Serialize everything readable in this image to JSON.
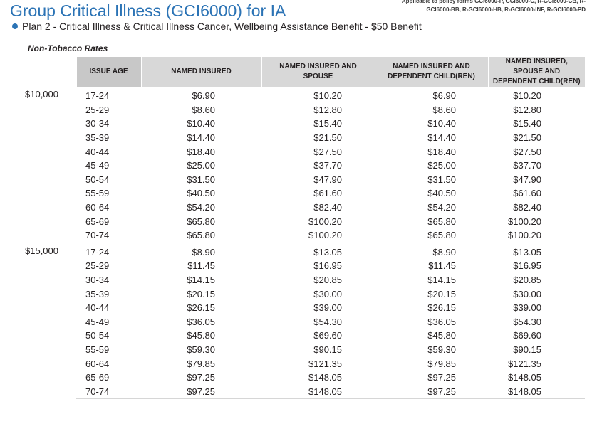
{
  "header": {
    "title": "Group Critical Illness (GCI6000) for IA",
    "forms_note": "Applicable to policy forms GCI6000-P, GCI6000-C, R-GCI6000-CB, R-GCI6000-BB, R-GCI6000-HB, R-GCI6000-INF, R-GCI6000-PD",
    "plan_line": "Plan 2 - Critical Illness & Critical Illness Cancer, Wellbeing Assistance Benefit - $50 Benefit",
    "bullet_color": "#2b73b5"
  },
  "rates_label": "Non-Tobacco Rates",
  "table": {
    "columns": [
      "",
      "ISSUE AGE",
      "NAMED INSURED",
      "NAMED INSURED AND SPOUSE",
      "NAMED INSURED AND DEPENDENT CHILD(REN)",
      "NAMED INSURED, SPOUSE AND DEPENDENT CHILD(REN)"
    ],
    "groups": [
      {
        "amount": "$10,000",
        "rows": [
          [
            "17-24",
            "$6.90",
            "$10.20",
            "$6.90",
            "$10.20"
          ],
          [
            "25-29",
            "$8.60",
            "$12.80",
            "$8.60",
            "$12.80"
          ],
          [
            "30-34",
            "$10.40",
            "$15.40",
            "$10.40",
            "$15.40"
          ],
          [
            "35-39",
            "$14.40",
            "$21.50",
            "$14.40",
            "$21.50"
          ],
          [
            "40-44",
            "$18.40",
            "$27.50",
            "$18.40",
            "$27.50"
          ],
          [
            "45-49",
            "$25.00",
            "$37.70",
            "$25.00",
            "$37.70"
          ],
          [
            "50-54",
            "$31.50",
            "$47.90",
            "$31.50",
            "$47.90"
          ],
          [
            "55-59",
            "$40.50",
            "$61.60",
            "$40.50",
            "$61.60"
          ],
          [
            "60-64",
            "$54.20",
            "$82.40",
            "$54.20",
            "$82.40"
          ],
          [
            "65-69",
            "$65.80",
            "$100.20",
            "$65.80",
            "$100.20"
          ],
          [
            "70-74",
            "$65.80",
            "$100.20",
            "$65.80",
            "$100.20"
          ]
        ]
      },
      {
        "amount": "$15,000",
        "rows": [
          [
            "17-24",
            "$8.90",
            "$13.05",
            "$8.90",
            "$13.05"
          ],
          [
            "25-29",
            "$11.45",
            "$16.95",
            "$11.45",
            "$16.95"
          ],
          [
            "30-34",
            "$14.15",
            "$20.85",
            "$14.15",
            "$20.85"
          ],
          [
            "35-39",
            "$20.15",
            "$30.00",
            "$20.15",
            "$30.00"
          ],
          [
            "40-44",
            "$26.15",
            "$39.00",
            "$26.15",
            "$39.00"
          ],
          [
            "45-49",
            "$36.05",
            "$54.30",
            "$36.05",
            "$54.30"
          ],
          [
            "50-54",
            "$45.80",
            "$69.60",
            "$45.80",
            "$69.60"
          ],
          [
            "55-59",
            "$59.30",
            "$90.15",
            "$59.30",
            "$90.15"
          ],
          [
            "60-64",
            "$79.85",
            "$121.35",
            "$79.85",
            "$121.35"
          ],
          [
            "65-69",
            "$97.25",
            "$148.05",
            "$97.25",
            "$148.05"
          ],
          [
            "70-74",
            "$97.25",
            "$148.05",
            "$97.25",
            "$148.05"
          ]
        ]
      }
    ]
  }
}
